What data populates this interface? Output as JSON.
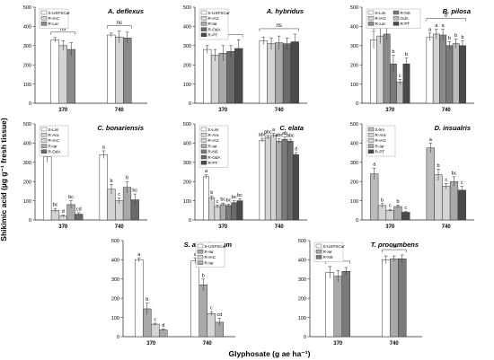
{
  "figure": {
    "ylabel": "Shikimic acid (µg g⁻¹ fresh tissue)",
    "xlabel": "Glyphosate (g ae ha⁻¹)"
  },
  "colors": {
    "S-USFSCar": "#ffffff",
    "S-Lim": "#ffffff",
    "R-IAC": "#d4d4d4",
    "R-Ara": "#d4d4d4",
    "R-Iar": "#a9a9a9",
    "R-Lar": "#8a8a8a",
    "R-OdA": "#6a6a6a",
    "R-PT": "#4a4a4a",
    "R-NS": "#7a7a7a"
  },
  "chart_data": [
    {
      "type": "bar",
      "title": "A. deflexus",
      "categories": [
        "370",
        "740"
      ],
      "ylim": [
        0,
        500
      ],
      "yticks": [
        0,
        100,
        200,
        300,
        400,
        500
      ],
      "series": [
        {
          "name": "S-USFSCar",
          "values": [
            330,
            355
          ],
          "errors": [
            12,
            10
          ]
        },
        {
          "name": "R-IAC",
          "values": [
            300,
            345
          ],
          "errors": [
            25,
            30
          ]
        },
        {
          "name": "R-Lar",
          "values": [
            280,
            340
          ],
          "errors": [
            35,
            30
          ]
        }
      ],
      "sig": [
        {
          "pos": 0,
          "text": "ns",
          "bracket": true
        },
        {
          "pos": 1,
          "text": "ns",
          "bracket": true
        }
      ]
    },
    {
      "type": "bar",
      "title": "A. hybridus",
      "categories": [
        "370",
        "740"
      ],
      "ylim": [
        0,
        500
      ],
      "yticks": [
        0,
        100,
        200,
        300,
        400,
        500
      ],
      "series": [
        {
          "name": "S-USFSCar",
          "values": [
            280,
            325
          ],
          "errors": [
            20,
            20
          ]
        },
        {
          "name": "R-IAC",
          "values": [
            250,
            310
          ],
          "errors": [
            30,
            30
          ]
        },
        {
          "name": "R-Iar",
          "values": [
            260,
            315
          ],
          "errors": [
            40,
            35
          ]
        },
        {
          "name": "R-OdA",
          "values": [
            270,
            310
          ],
          "errors": [
            30,
            30
          ]
        },
        {
          "name": "R-PT",
          "values": [
            285,
            320
          ],
          "errors": [
            45,
            40
          ]
        }
      ],
      "sig": [
        {
          "pos": 0,
          "text": "ns",
          "bracket": true
        },
        {
          "pos": 1,
          "text": "ns",
          "bracket": true
        }
      ]
    },
    {
      "type": "bar",
      "title": "B. pilosa",
      "categories": [
        "370",
        "740"
      ],
      "ylim": [
        0,
        500
      ],
      "yticks": [
        0,
        100,
        200,
        300,
        400,
        500
      ],
      "series": [
        {
          "name": "S-Lim",
          "values": [
            330,
            345
          ],
          "errors": [
            45,
            20
          ]
        },
        {
          "name": "R-IAC",
          "values": [
            350,
            360
          ],
          "errors": [
            40,
            25
          ]
        },
        {
          "name": "R-Lar",
          "values": [
            360,
            355
          ],
          "errors": [
            30,
            30
          ]
        },
        {
          "name": "R-NS",
          "values": [
            205,
            300
          ],
          "errors": [
            45,
            20
          ]
        },
        {
          "name": "OdA",
          "values": [
            110,
            310
          ],
          "errors": [
            15,
            25
          ]
        },
        {
          "name": "R-PT",
          "values": [
            205,
            300
          ],
          "errors": [
            30,
            25
          ]
        }
      ],
      "labels": [
        [
          "a",
          "a"
        ],
        [
          "a",
          "a"
        ],
        [
          "a",
          "a"
        ],
        [
          "b",
          "b"
        ],
        [
          "c",
          "b"
        ],
        [
          "b",
          "b"
        ]
      ],
      "sig": [
        {
          "pos": 0,
          "text": "a",
          "bracket": true
        },
        {
          "pos": 1,
          "text": "b",
          "bracket": true
        }
      ]
    },
    {
      "type": "bar",
      "title": "C. bonariensis",
      "categories": [
        "370",
        "740"
      ],
      "ylim": [
        0,
        500
      ],
      "yticks": [
        0,
        100,
        200,
        300,
        400,
        500
      ],
      "series": [
        {
          "name": "S-Lim",
          "values": [
            330,
            340
          ],
          "errors": [
            30,
            20
          ]
        },
        {
          "name": "R-Ara",
          "values": [
            50,
            160
          ],
          "errors": [
            10,
            25
          ]
        },
        {
          "name": "R-IAC",
          "values": [
            20,
            100
          ],
          "errors": [
            5,
            15
          ]
        },
        {
          "name": "R-Iar",
          "values": [
            80,
            170
          ],
          "errors": [
            20,
            30
          ]
        },
        {
          "name": "R-OdA",
          "values": [
            30,
            105
          ],
          "errors": [
            8,
            30
          ]
        }
      ],
      "labels": [
        [
          "a",
          "a"
        ],
        [
          "bc",
          "b"
        ],
        [
          "d",
          "c"
        ],
        [
          "bc",
          "b"
        ],
        [
          "cd",
          "bc"
        ]
      ]
    },
    {
      "type": "bar",
      "title": "C. elata",
      "categories": [
        "370",
        "740"
      ],
      "ylim": [
        0,
        500
      ],
      "yticks": [
        0,
        100,
        200,
        300,
        400,
        500
      ],
      "series": [
        {
          "name": "S-Lim",
          "values": [
            225,
            415
          ],
          "errors": [
            10,
            10
          ]
        },
        {
          "name": "R-Ara",
          "values": [
            115,
            430
          ],
          "errors": [
            10,
            10
          ]
        },
        {
          "name": "R-IAC",
          "values": [
            70,
            440
          ],
          "errors": [
            8,
            10
          ]
        },
        {
          "name": "R-Iar",
          "values": [
            80,
            410
          ],
          "errors": [
            8,
            12
          ]
        },
        {
          "name": "R-NS",
          "values": [
            75,
            420
          ],
          "errors": [
            8,
            12
          ]
        },
        {
          "name": "R-OdA",
          "values": [
            90,
            410
          ],
          "errors": [
            10,
            10
          ]
        },
        {
          "name": "R-PT",
          "values": [
            100,
            340
          ],
          "errors": [
            10,
            10
          ]
        }
      ],
      "labels": [
        [
          "a",
          "abc"
        ],
        [
          "b",
          "abc"
        ],
        [
          "c",
          "a"
        ],
        [
          "bc",
          "abc"
        ],
        [
          "bc",
          "ab"
        ],
        [
          "bc",
          "abc"
        ],
        [
          "bc",
          "d"
        ]
      ]
    },
    {
      "type": "bar",
      "title": "D. insualris",
      "categories": [
        "370",
        "740"
      ],
      "ylim": [
        0,
        500
      ],
      "yticks": [
        0,
        100,
        200,
        300,
        400,
        500
      ],
      "series": [
        {
          "name": "S-lim",
          "values": [
            240,
            375
          ],
          "errors": [
            30,
            25
          ]
        },
        {
          "name": "R-Ara",
          "values": [
            75,
            235
          ],
          "errors": [
            10,
            30
          ]
        },
        {
          "name": "R-IAC",
          "values": [
            50,
            175
          ],
          "errors": [
            5,
            15
          ]
        },
        {
          "name": "R-Iar",
          "values": [
            70,
            200
          ],
          "errors": [
            8,
            25
          ]
        },
        {
          "name": "R-PT",
          "values": [
            40,
            155
          ],
          "errors": [
            5,
            20
          ]
        }
      ],
      "labels": [
        [
          "a",
          "a"
        ],
        [
          "b",
          "b"
        ],
        [
          "c",
          "c"
        ],
        [
          "b",
          "bc"
        ],
        [
          "c",
          "c"
        ]
      ]
    },
    {
      "type": "bar",
      "title": "S. americanum",
      "categories": [
        "370",
        "740"
      ],
      "ylim": [
        0,
        500
      ],
      "yticks": [
        0,
        100,
        200,
        300,
        400,
        500
      ],
      "series": [
        {
          "name": "S-USFSCar",
          "values": [
            400,
            395
          ],
          "errors": [
            10,
            15
          ]
        },
        {
          "name": "R-Iar",
          "values": [
            145,
            270
          ],
          "errors": [
            30,
            30
          ]
        },
        {
          "name": "R-IAC",
          "values": [
            65,
            120
          ],
          "errors": [
            5,
            10
          ]
        },
        {
          "name": "R-Iar",
          "values": [
            35,
            75
          ],
          "errors": [
            5,
            20
          ]
        }
      ],
      "labels": [
        [
          "a",
          "a"
        ],
        [
          "b",
          "b"
        ],
        [
          "c",
          "c"
        ],
        [
          "d",
          "cd"
        ]
      ]
    },
    {
      "type": "bar",
      "title": "T. procumbens",
      "categories": [
        "370",
        "740"
      ],
      "ylim": [
        0,
        500
      ],
      "yticks": [
        0,
        100,
        200,
        300,
        400,
        500
      ],
      "series": [
        {
          "name": "S-USFSCar",
          "values": [
            335,
            400
          ],
          "errors": [
            30,
            20
          ]
        },
        {
          "name": "R-Iar",
          "values": [
            315,
            405
          ],
          "errors": [
            30,
            15
          ]
        },
        {
          "name": "R-NS",
          "values": [
            340,
            405
          ],
          "errors": [
            20,
            20
          ]
        }
      ],
      "sig": [
        {
          "pos": 0,
          "text": "ns",
          "bracket": true
        },
        {
          "pos": 1,
          "text": "ns",
          "bracket": true
        }
      ]
    }
  ]
}
